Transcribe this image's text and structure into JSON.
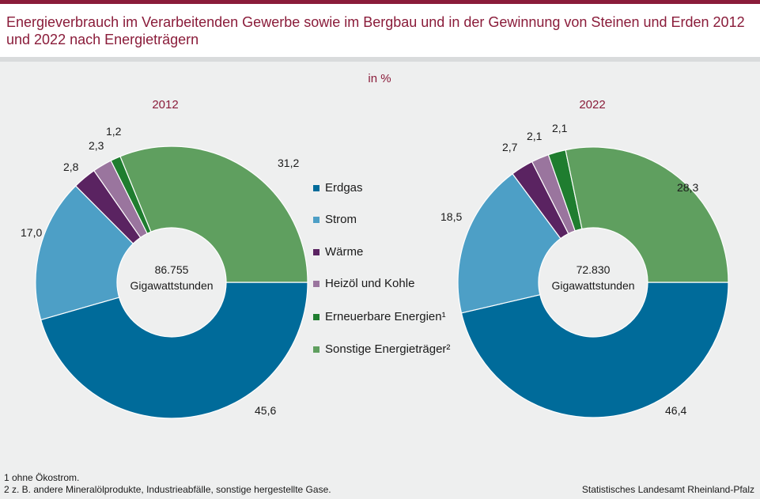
{
  "title": "Energieverbrauch im Verarbeitenden Gewerbe sowie im Bergbau und in der Gewinnung von Steinen und Erden 2012 und 2022 nach Energieträgern",
  "unit": "in %",
  "chart_data": [
    {
      "type": "pie",
      "title": "2012",
      "center_value": "86.755",
      "center_unit": "Gigawattstunden",
      "categories": [
        "Erdgas",
        "Strom",
        "Wärme",
        "Heizöl und Kohle",
        "Erneuerbare Energien¹",
        "Sonstige Energieträger²"
      ],
      "values": [
        45.6,
        17.0,
        2.8,
        2.3,
        1.2,
        31.2
      ],
      "labels": [
        "45,6",
        "17,0",
        "2,8",
        "2,3",
        "1,2",
        "31,2"
      ]
    },
    {
      "type": "pie",
      "title": "2022",
      "center_value": "72.830",
      "center_unit": "Gigawattstunden",
      "categories": [
        "Erdgas",
        "Strom",
        "Wärme",
        "Heizöl und Kohle",
        "Erneuerbare Energien¹",
        "Sonstige Energieträger²"
      ],
      "values": [
        46.4,
        18.5,
        2.7,
        2.1,
        2.1,
        28.3
      ],
      "labels": [
        "46,4",
        "18,5",
        "2,7",
        "2,1",
        "2,1",
        "28,3"
      ]
    }
  ],
  "legend": [
    {
      "label": "Erdgas",
      "color": "#006b9a"
    },
    {
      "label": "Strom",
      "color": "#4d9fc6"
    },
    {
      "label": "Wärme",
      "color": "#5a2361"
    },
    {
      "label": "Heizöl und Kohle",
      "color": "#9a759e"
    },
    {
      "label": "Erneuerbare Energien¹",
      "color": "#1f7d2f"
    },
    {
      "label": "Sonstige Energieträger²",
      "color": "#5f9f5f"
    }
  ],
  "footnotes": [
    "1 ohne Ökostrom.",
    "2 z. B. andere Mineralölprodukte, Industrieabfälle, sonstige hergestellte Gase."
  ],
  "source": "Statistisches Landesamt Rheinland-Pfalz"
}
